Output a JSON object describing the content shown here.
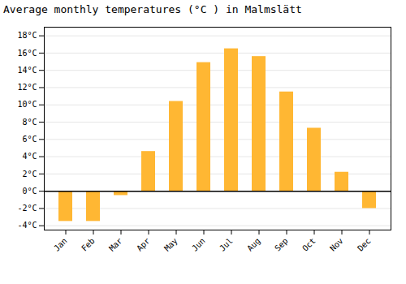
{
  "chart_data": {
    "type": "bar",
    "title": "Average monthly temperatures (°C ) in Malmslätt",
    "categories": [
      "Jan",
      "Feb",
      "Mar",
      "Apr",
      "May",
      "Jun",
      "Jul",
      "Aug",
      "Sep",
      "Oct",
      "Nov",
      "Dec"
    ],
    "values": [
      -3.5,
      -3.5,
      -0.5,
      4.6,
      10.4,
      14.9,
      16.5,
      15.6,
      11.5,
      7.3,
      2.2,
      -2.0
    ],
    "color": "#FFB733",
    "ylim": [
      -4.5,
      19
    ],
    "yticks": [
      {
        "value": -4,
        "label": "-4°C"
      },
      {
        "value": -2,
        "label": "-2°C"
      },
      {
        "value": 0,
        "label": "0°C"
      },
      {
        "value": 2,
        "label": "2°C"
      },
      {
        "value": 4,
        "label": "4°C"
      },
      {
        "value": 6,
        "label": "6°C"
      },
      {
        "value": 8,
        "label": "8°C"
      },
      {
        "value": 10,
        "label": "10°C"
      },
      {
        "value": 12,
        "label": "12°C"
      },
      {
        "value": 14,
        "label": "14°C"
      },
      {
        "value": 16,
        "label": "16°C"
      },
      {
        "value": 18,
        "label": "18°C"
      }
    ],
    "grid": true
  }
}
